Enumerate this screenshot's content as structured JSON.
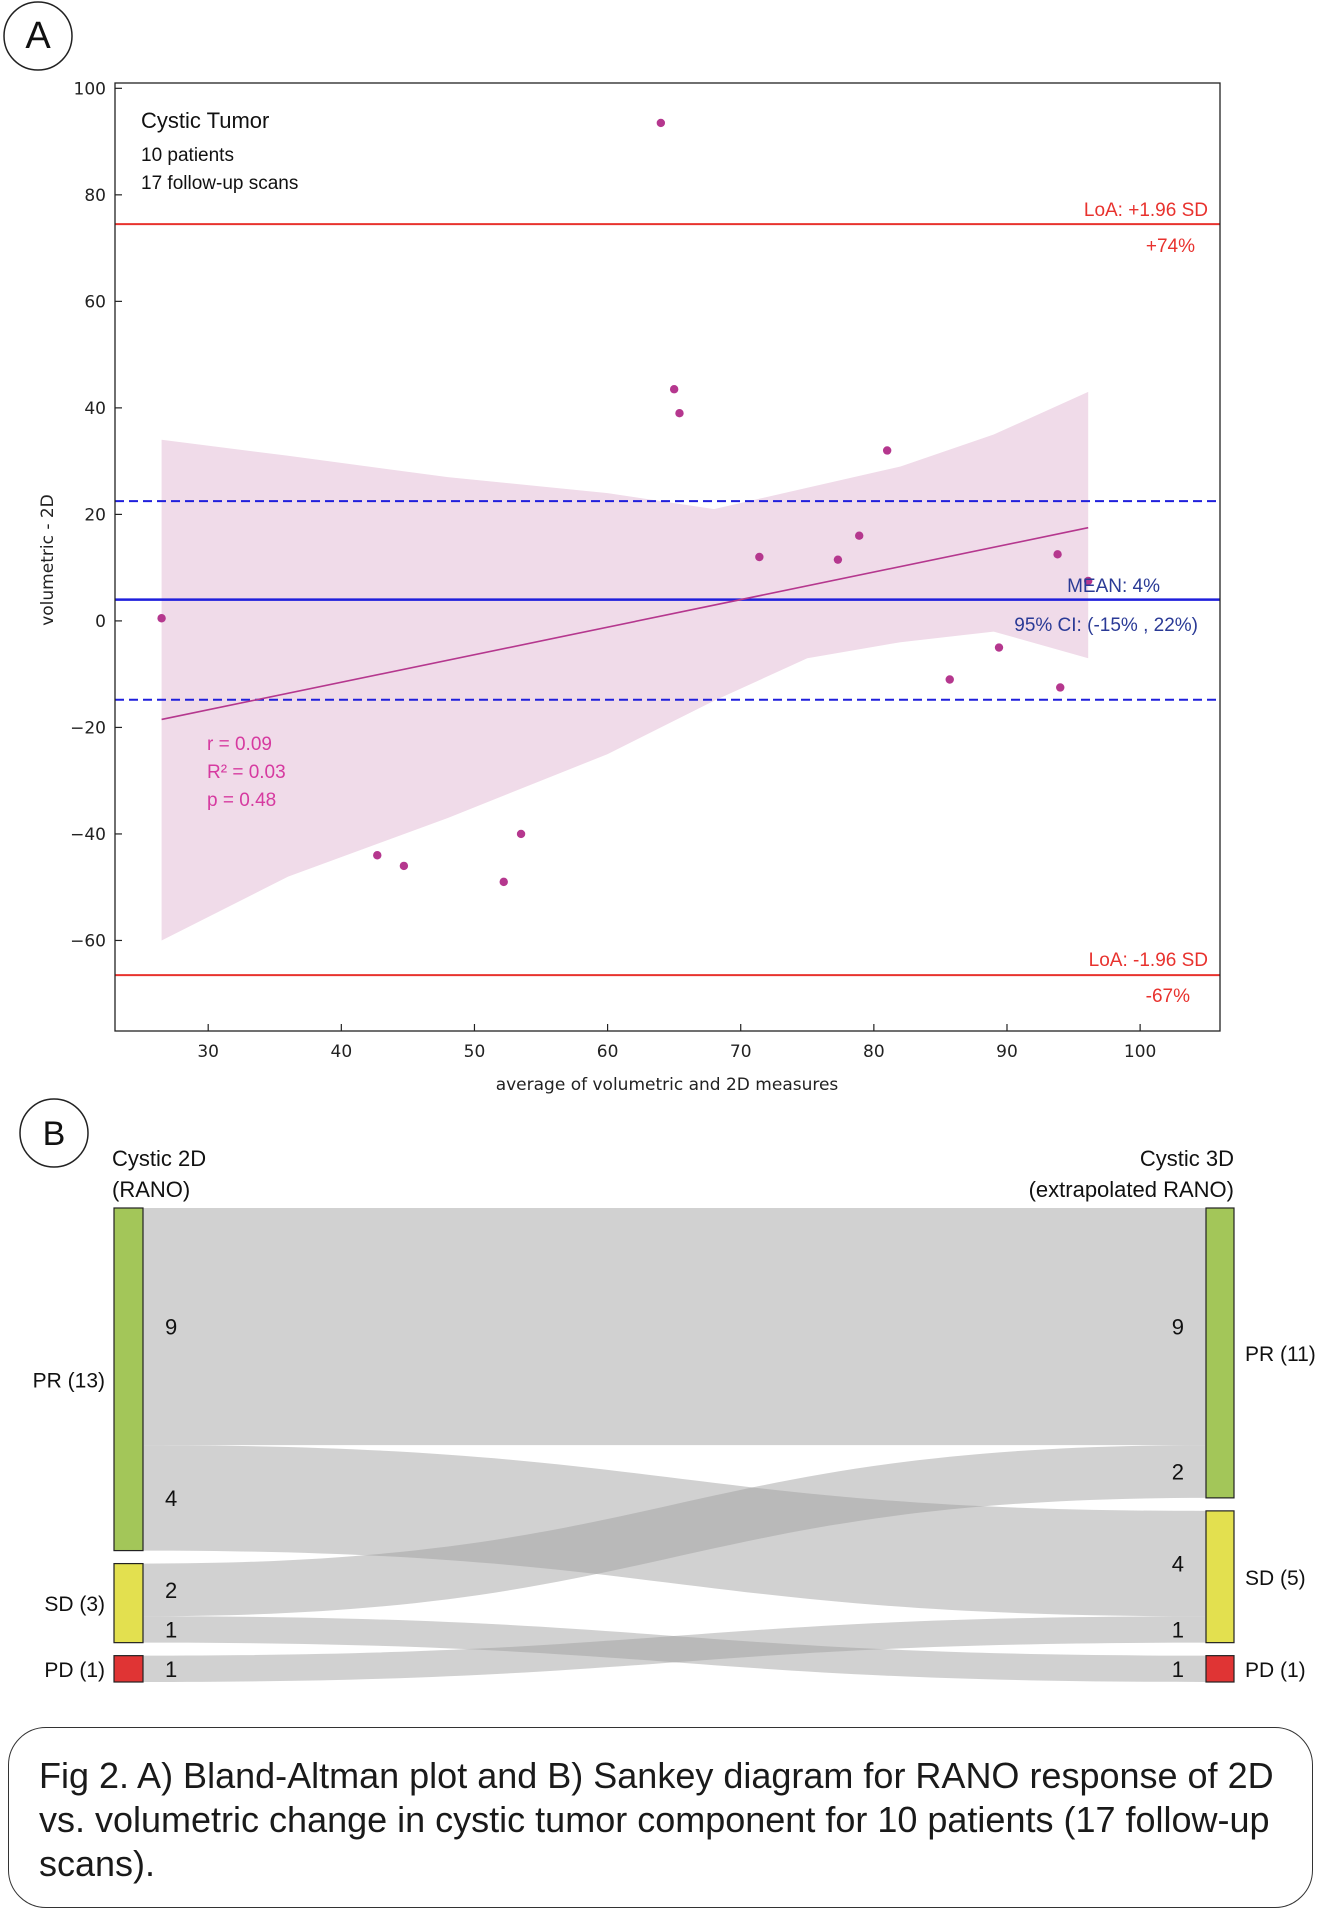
{
  "panel_a": {
    "label": "A",
    "info_title": "Cystic Tumor",
    "info_line1": "10 patients",
    "info_line2": "17 follow-up scans",
    "loa_upper_label": "LoA: +1.96 SD",
    "loa_upper_value": "+74%",
    "loa_lower_label": "LoA: -1.96 SD",
    "loa_lower_value": "-67%",
    "mean_label": "MEAN: 4%",
    "ci_label": "95% CI: (-15% , 22%)",
    "stat_r": "r = 0.09",
    "stat_r2": "R² = 0.03",
    "stat_p": "p = 0.48"
  },
  "chart_data": [
    {
      "type": "scatter",
      "title": "Cystic Tumor",
      "xlabel": "average of volumetric and 2D measures",
      "ylabel": "volumetric - 2D",
      "xlim": [
        23,
        106
      ],
      "ylim": [
        -77,
        101
      ],
      "xticks": [
        30,
        40,
        50,
        60,
        70,
        80,
        90,
        100
      ],
      "yticks": [
        100,
        80,
        60,
        40,
        20,
        0,
        -20,
        -40,
        -60
      ],
      "points": [
        {
          "x": 26.5,
          "y": 0.5
        },
        {
          "x": 42.7,
          "y": -44
        },
        {
          "x": 44.7,
          "y": -46
        },
        {
          "x": 52.2,
          "y": -49
        },
        {
          "x": 53.5,
          "y": -40
        },
        {
          "x": 64,
          "y": 93.5
        },
        {
          "x": 65,
          "y": 43.5
        },
        {
          "x": 65.4,
          "y": 39
        },
        {
          "x": 71.4,
          "y": 12
        },
        {
          "x": 77.3,
          "y": 11.5
        },
        {
          "x": 78.9,
          "y": 16
        },
        {
          "x": 81,
          "y": 32
        },
        {
          "x": 85.7,
          "y": -11
        },
        {
          "x": 89.4,
          "y": -5
        },
        {
          "x": 93.8,
          "y": 12.5
        },
        {
          "x": 94,
          "y": -12.5
        },
        {
          "x": 96.1,
          "y": 7.5
        }
      ],
      "regression": {
        "x": [
          26.5,
          96.1
        ],
        "y": [
          -18.5,
          17.5
        ]
      },
      "confidence_band": {
        "x": [
          26.5,
          36,
          48,
          60,
          68,
          75,
          82,
          89,
          96.1
        ],
        "upper": [
          34,
          31,
          27,
          24,
          21,
          25,
          29,
          35,
          43
        ],
        "lower": [
          -60,
          -48,
          -37,
          -25,
          -15,
          -7,
          -4,
          -2,
          -7
        ]
      },
      "mean": 4,
      "ci_upper": 22.5,
      "ci_lower": -14.8,
      "loa_upper": 74.5,
      "loa_lower": -66.5,
      "colors": {
        "points": "#b5378e",
        "band": "#f0dbe9",
        "regression": "#b5378e",
        "mean": "#1f1fdc",
        "loa": "#e8322e",
        "stats": "#d63aa0",
        "annot_blue": "#2a3a96"
      }
    },
    {
      "type": "sankey",
      "title": "",
      "left_header": [
        "Cystic 2D",
        "(RANO)"
      ],
      "right_header": [
        "Cystic 3D",
        "(extrapolated RANO)"
      ],
      "left_nodes": [
        {
          "name": "PR",
          "label": "PR (13)",
          "count": 13,
          "color": "#a3c659"
        },
        {
          "name": "SD",
          "label": "SD (3)",
          "count": 3,
          "color": "#e3e04f"
        },
        {
          "name": "PD",
          "label": "PD (1)",
          "count": 1,
          "color": "#e03434"
        }
      ],
      "right_nodes": [
        {
          "name": "PR",
          "label": "PR (11)",
          "count": 11,
          "color": "#a3c659"
        },
        {
          "name": "SD",
          "label": "SD (5)",
          "count": 5,
          "color": "#e3e04f"
        },
        {
          "name": "PD",
          "label": "PD (1)",
          "count": 1,
          "color": "#e03434"
        }
      ],
      "flows": [
        {
          "from": "PR",
          "to": "PR",
          "value": 9,
          "left_label": "9",
          "right_label": "9"
        },
        {
          "from": "PR",
          "to": "SD",
          "value": 4,
          "left_label": "4",
          "right_label": "4"
        },
        {
          "from": "SD",
          "to": "PR",
          "value": 2,
          "left_label": "2",
          "right_label": "2"
        },
        {
          "from": "SD",
          "to": "PD",
          "value": 1,
          "left_label": "1",
          "right_label": "1"
        },
        {
          "from": "PD",
          "to": "SD",
          "value": 1,
          "left_label": "1",
          "right_label": "1"
        }
      ]
    }
  ],
  "panel_b": {
    "label": "B"
  },
  "caption": {
    "text": "Fig 2. A) Bland-Altman plot and B) Sankey diagram for RANO response of 2D vs. volumetric change in cystic tumor component for 10 patients (17 follow-up scans)."
  }
}
